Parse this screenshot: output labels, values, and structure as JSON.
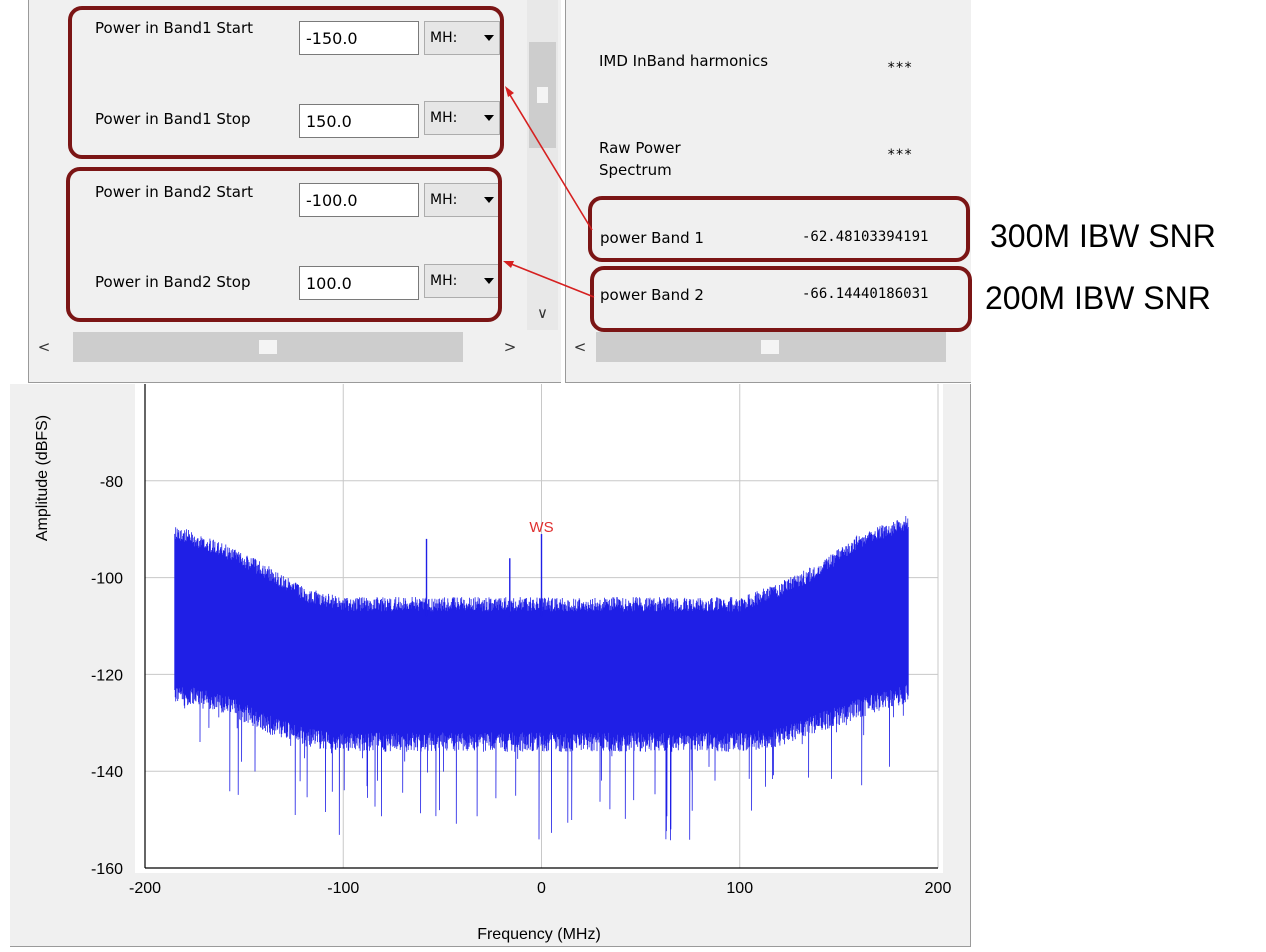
{
  "band_settings": {
    "band1_start": {
      "label": "Power in Band1 Start",
      "value": "-150.0",
      "unit": "MH:"
    },
    "band1_stop": {
      "label": "Power in Band1 Stop",
      "value": "150.0",
      "unit": "MH:"
    },
    "band2_start": {
      "label": "Power in Band2 Start",
      "value": "-100.0",
      "unit": "MH:"
    },
    "band2_stop": {
      "label": "Power in Band2 Stop",
      "value": "100.0",
      "unit": "MH:"
    }
  },
  "results": [
    {
      "name": "IMD InBand harmonics",
      "value": "***"
    },
    {
      "name": "Raw Power Spectrum",
      "value": "***"
    },
    {
      "name": "power Band 1",
      "value": "-62.48103394191"
    },
    {
      "name": "power Band 2",
      "value": "-66.14440186031"
    }
  ],
  "annotations": {
    "band1": "300M IBW SNR",
    "band2": "200M IBW SNR"
  },
  "colors": {
    "highlight": "#7b1515",
    "arrow": "#d62020",
    "trace": "#1f1fe6",
    "marker": "#e03030"
  },
  "chart_data": {
    "type": "line",
    "title": "",
    "xlabel": "Frequency (MHz)",
    "ylabel": "Amplitude (dBFS)",
    "xlim": [
      -200,
      200
    ],
    "ylim": [
      -160,
      -60
    ],
    "xticks": [
      "-200",
      "-100",
      "0",
      "100",
      "200"
    ],
    "yticks": [
      "-80",
      "-100",
      "-120",
      "-140",
      "-160"
    ],
    "grid": true,
    "marker": {
      "label": "WS",
      "x": 0,
      "y": -91
    },
    "series": [
      {
        "upper_envelope": {
          "x": [
            -185,
            -160,
            -140,
            -120,
            -100,
            -60,
            -20,
            0,
            20,
            60,
            100,
            120,
            140,
            160,
            185
          ],
          "y": [
            -89,
            -93,
            -97,
            -102,
            -104,
            -104,
            -104,
            -104,
            -104,
            -104,
            -104,
            -101,
            -97,
            -91,
            -87
          ]
        },
        "lower_envelope": {
          "x": [
            -185,
            -160,
            -140,
            -120,
            -100,
            -60,
            -20,
            0,
            20,
            60,
            100,
            120,
            140,
            160,
            185
          ],
          "y": [
            -122,
            -124,
            -128,
            -131,
            -132,
            -132,
            -132,
            -132,
            -132,
            -132,
            -132,
            -131,
            -128,
            -125,
            -122
          ]
        },
        "deep_nulls": {
          "x": [
            -185,
            -150,
            -100,
            -60,
            -30,
            -10,
            0,
            30,
            60,
            100,
            150,
            185
          ],
          "y": [
            -137,
            -148,
            -155,
            -150,
            -152,
            -157,
            -154,
            -152,
            -159,
            -150,
            -148,
            -138
          ]
        },
        "spurs": {
          "x": [
            -58,
            -16,
            0
          ],
          "y": [
            -92,
            -96,
            -91
          ]
        }
      }
    ]
  }
}
